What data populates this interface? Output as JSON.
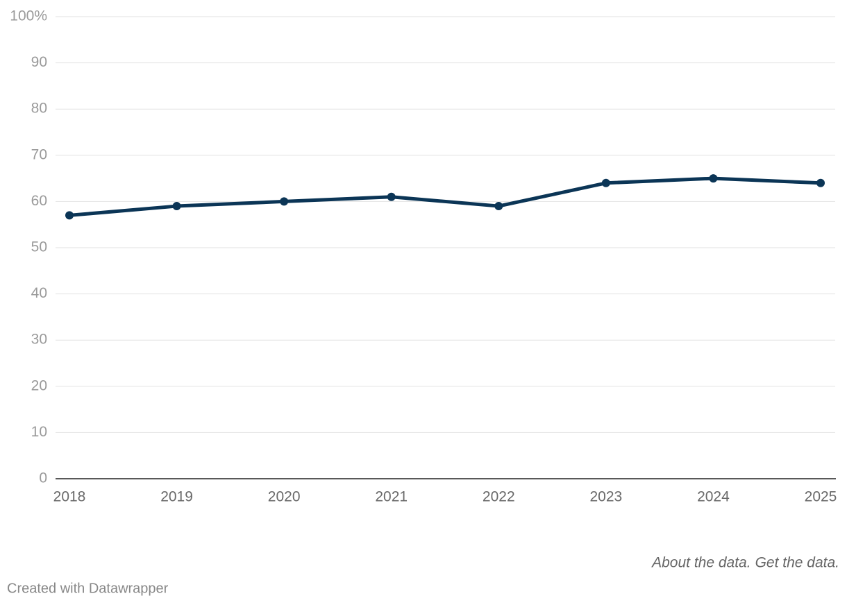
{
  "chart_data": {
    "type": "line",
    "x": [
      2018,
      2019,
      2020,
      2021,
      2022,
      2023,
      2024,
      2025
    ],
    "series": [
      {
        "color": "#0b3556",
        "values": [
          57,
          59,
          60,
          61,
          59,
          64,
          65,
          64
        ]
      }
    ],
    "xlim": [
      2018,
      2025
    ],
    "xticks": [
      2018,
      2019,
      2020,
      2021,
      2022,
      2023,
      2024,
      2025
    ],
    "ylim": [
      0,
      100
    ],
    "yticks": [
      0,
      10,
      20,
      30,
      40,
      50,
      60,
      70,
      80,
      90,
      {
        "value": 100,
        "label": "100%"
      }
    ],
    "grid": true,
    "links": [
      "About the data.",
      "Get the data."
    ],
    "credit": "Created with Datawrapper"
  }
}
